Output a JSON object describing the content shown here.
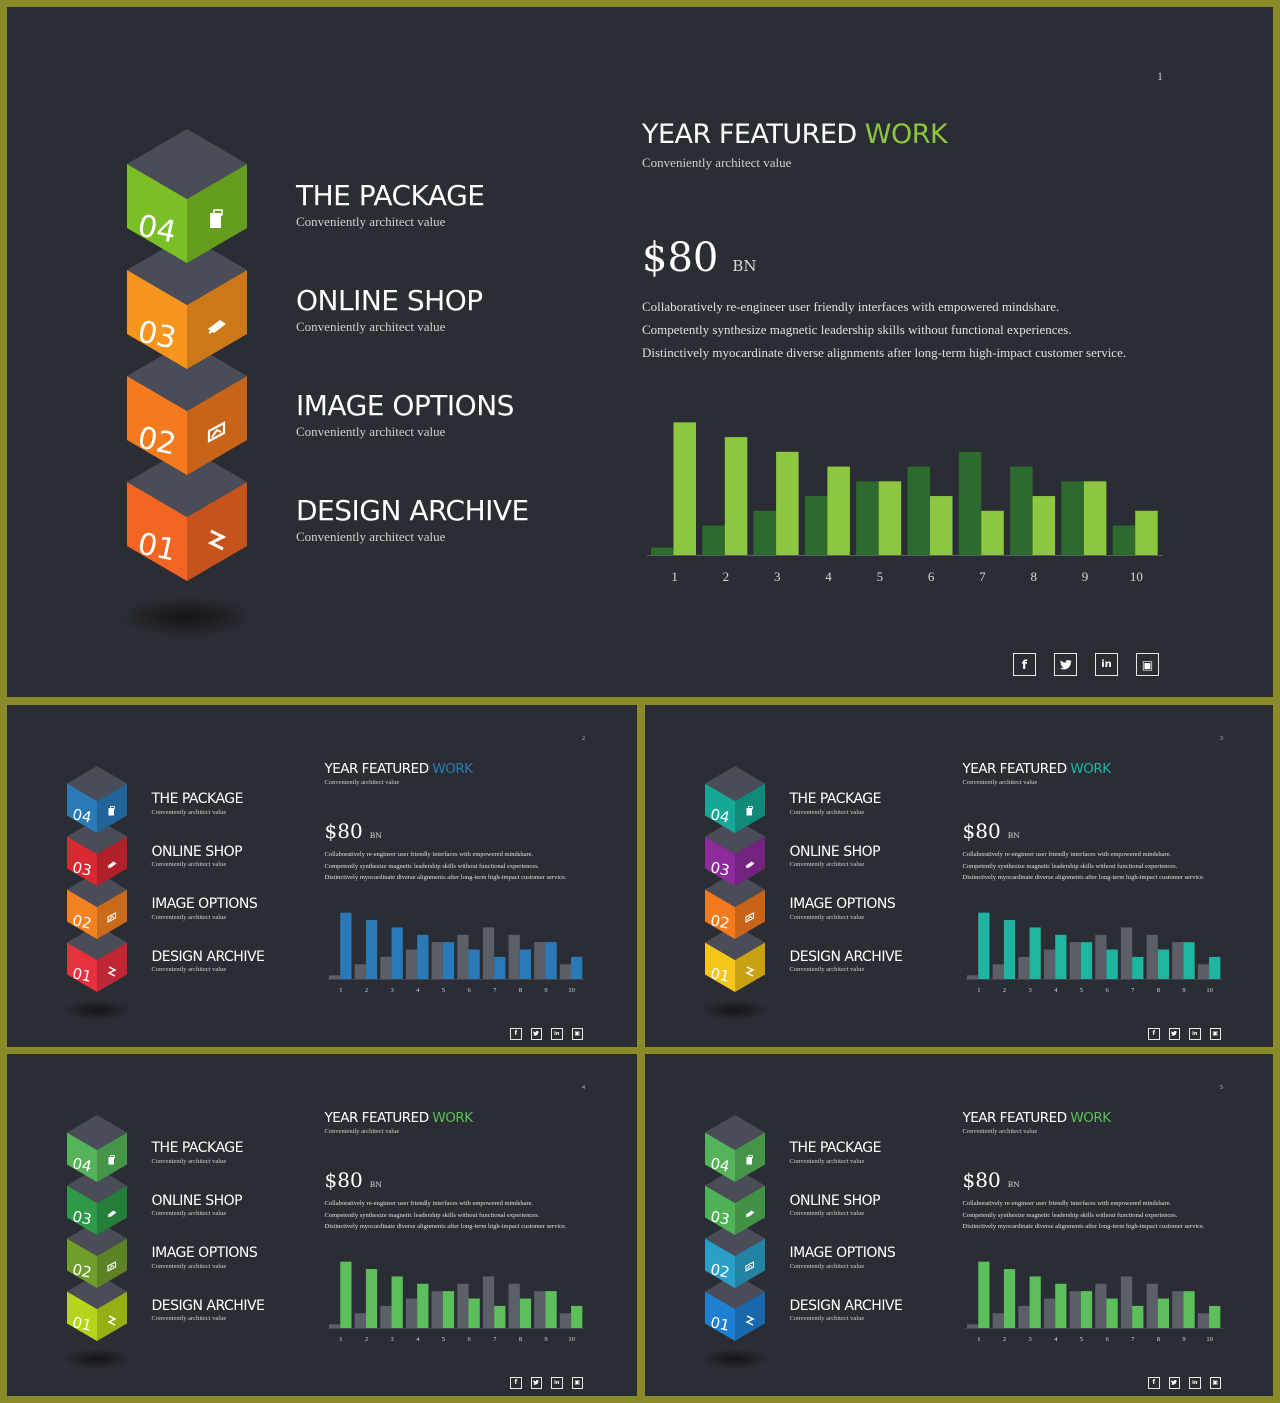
{
  "slides": [
    {
      "number": "1",
      "headline": {
        "text": "YEAR FEATURED ",
        "accent": "WORK"
      },
      "subtitle": "Conveniently architect value",
      "amount": {
        "value": "$80",
        "unit": "BN"
      },
      "paragraph": [
        "Collaboratively re-engineer user friendly interfaces with empowered mindshare.",
        "Competently synthesize magnetic leadership skills without functional experiences.",
        "Distinctively myocardinate diverse alignments after long-term high-impact customer service."
      ],
      "items": [
        {
          "num": "04",
          "title": "THE PACKAGE",
          "subtitle": "Conveniently architect value",
          "icon": "package-icon"
        },
        {
          "num": "03",
          "title": "ONLINE SHOP",
          "subtitle": "Conveniently architect value",
          "icon": "money-icon"
        },
        {
          "num": "02",
          "title": "IMAGE OPTIONS",
          "subtitle": "Conveniently architect value",
          "icon": "image-icon"
        },
        {
          "num": "01",
          "title": "DESIGN ARCHIVE",
          "subtitle": "Conveniently architect value",
          "icon": "archive-icon"
        }
      ],
      "social": [
        "facebook-icon",
        "twitter-icon",
        "linkedin-icon",
        "instagram-icon"
      ],
      "colors": {
        "accent": "#8dc63f",
        "bar_primary": "#8dc63f",
        "bar_secondary": "#2d6a2e",
        "cubes": [
          "#7bbf26",
          "#f7941d",
          "#f47a20",
          "#f26522"
        ]
      }
    },
    {
      "number": "2",
      "headline": {
        "text": "YEAR FEATURED ",
        "accent": "WORK"
      },
      "subtitle": "Conveniently architect value",
      "amount": {
        "value": "$80",
        "unit": "BN"
      },
      "paragraph": [
        "Collaboratively re-engineer user friendly interfaces with empowered mindshare.",
        "Competently synthesize magnetic leadership skills without functional experiences.",
        "Distinctively myocardinate diverse alignments after long-term high-impact customer service."
      ],
      "items": [
        {
          "num": "04",
          "title": "THE PACKAGE",
          "subtitle": "Conveniently architect value",
          "icon": "package-icon"
        },
        {
          "num": "03",
          "title": "ONLINE SHOP",
          "subtitle": "Conveniently architect value",
          "icon": "money-icon"
        },
        {
          "num": "02",
          "title": "IMAGE OPTIONS",
          "subtitle": "Conveniently architect value",
          "icon": "image-icon"
        },
        {
          "num": "01",
          "title": "DESIGN ARCHIVE",
          "subtitle": "Conveniently architect value",
          "icon": "archive-icon"
        }
      ],
      "social": [
        "facebook-icon",
        "twitter-icon",
        "linkedin-icon",
        "instagram-icon"
      ],
      "colors": {
        "accent": "#2a7ab8",
        "bar_primary": "#2a7ab8",
        "bar_secondary": "#5a5f68",
        "cubes": [
          "#2a7ab8",
          "#d92832",
          "#f58220",
          "#e8303e"
        ]
      }
    },
    {
      "number": "3",
      "headline": {
        "text": "YEAR FEATURED ",
        "accent": "WORK"
      },
      "subtitle": "Conveniently architect value",
      "amount": {
        "value": "$80",
        "unit": "BN"
      },
      "paragraph": [
        "Collaboratively re-engineer user friendly interfaces with empowered mindshare.",
        "Competently synthesize magnetic leadership skills without functional experiences.",
        "Distinctively myocardinate diverse alignments after long-term high-impact customer service."
      ],
      "items": [
        {
          "num": "04",
          "title": "THE PACKAGE",
          "subtitle": "Conveniently architect value",
          "icon": "package-icon"
        },
        {
          "num": "03",
          "title": "ONLINE SHOP",
          "subtitle": "Conveniently architect value",
          "icon": "money-icon"
        },
        {
          "num": "02",
          "title": "IMAGE OPTIONS",
          "subtitle": "Conveniently architect value",
          "icon": "image-icon"
        },
        {
          "num": "01",
          "title": "DESIGN ARCHIVE",
          "subtitle": "Conveniently architect value",
          "icon": "archive-icon"
        }
      ],
      "social": [
        "facebook-icon",
        "twitter-icon",
        "linkedin-icon",
        "instagram-icon"
      ],
      "colors": {
        "accent": "#1fb5a0",
        "bar_primary": "#1fb5a0",
        "bar_secondary": "#5a5f68",
        "cubes": [
          "#16a896",
          "#8e2a9c",
          "#f47a20",
          "#f5c518"
        ]
      }
    },
    {
      "number": "4",
      "headline": {
        "text": "YEAR FEATURED ",
        "accent": "WORK"
      },
      "subtitle": "Conveniently architect value",
      "amount": {
        "value": "$80",
        "unit": "BN"
      },
      "paragraph": [
        "Collaboratively re-engineer user friendly interfaces with empowered mindshare.",
        "Competently synthesize magnetic leadership skills without functional experiences.",
        "Distinctively myocardinate diverse alignments after long-term high-impact customer service."
      ],
      "items": [
        {
          "num": "04",
          "title": "THE PACKAGE",
          "subtitle": "Conveniently architect value",
          "icon": "package-icon"
        },
        {
          "num": "03",
          "title": "ONLINE SHOP",
          "subtitle": "Conveniently architect value",
          "icon": "money-icon"
        },
        {
          "num": "02",
          "title": "IMAGE OPTIONS",
          "subtitle": "Conveniently architect value",
          "icon": "image-icon"
        },
        {
          "num": "01",
          "title": "DESIGN ARCHIVE",
          "subtitle": "Conveniently architect value",
          "icon": "archive-icon"
        }
      ],
      "social": [
        "facebook-icon",
        "twitter-icon",
        "linkedin-icon",
        "instagram-icon"
      ],
      "colors": {
        "accent": "#5cbf5c",
        "bar_primary": "#5cbf5c",
        "bar_secondary": "#5a5f68",
        "cubes": [
          "#55b45a",
          "#2e9a48",
          "#6f9e2c",
          "#b6d51a"
        ]
      }
    },
    {
      "number": "5",
      "headline": {
        "text": "YEAR FEATURED ",
        "accent": "WORK"
      },
      "subtitle": "Conveniently architect value",
      "amount": {
        "value": "$80",
        "unit": "BN"
      },
      "paragraph": [
        "Collaboratively re-engineer user friendly interfaces with empowered mindshare.",
        "Competently synthesize magnetic leadership skills without functional experiences.",
        "Distinctively myocardinate diverse alignments after long-term high-impact customer service."
      ],
      "items": [
        {
          "num": "04",
          "title": "THE PACKAGE",
          "subtitle": "Conveniently architect value",
          "icon": "package-icon"
        },
        {
          "num": "03",
          "title": "ONLINE SHOP",
          "subtitle": "Conveniently architect value",
          "icon": "money-icon"
        },
        {
          "num": "02",
          "title": "IMAGE OPTIONS",
          "subtitle": "Conveniently architect value",
          "icon": "image-icon"
        },
        {
          "num": "01",
          "title": "DESIGN ARCHIVE",
          "subtitle": "Conveniently architect value",
          "icon": "archive-icon"
        }
      ],
      "social": [
        "facebook-icon",
        "twitter-icon",
        "linkedin-icon",
        "instagram-icon"
      ],
      "colors": {
        "accent": "#5cbf5c",
        "bar_primary": "#5cbf5c",
        "bar_secondary": "#5a5f68",
        "cubes": [
          "#55b45a",
          "#4fb256",
          "#2aa0c8",
          "#1f7fd0"
        ]
      }
    }
  ],
  "chart_data": {
    "type": "bar",
    "categories": [
      "1",
      "2",
      "3",
      "4",
      "5",
      "6",
      "7",
      "8",
      "9",
      "10"
    ],
    "series": [
      {
        "values": [
          1,
          4,
          6,
          8,
          10,
          12,
          14,
          12,
          10,
          4
        ]
      },
      {
        "values": [
          18,
          16,
          14,
          12,
          10,
          8,
          6,
          8,
          10,
          6
        ]
      }
    ],
    "ylim": [
      0,
      19
    ],
    "grid": false,
    "legend": false
  }
}
